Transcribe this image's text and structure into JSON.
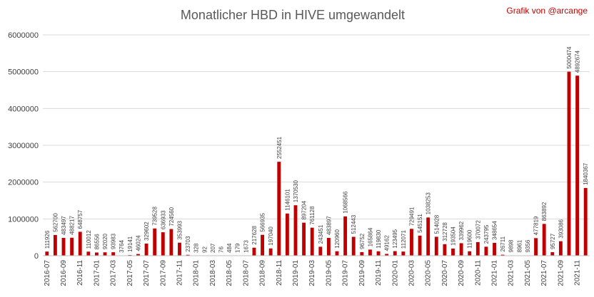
{
  "chart_data": {
    "type": "bar",
    "title": "Monatlicher HBD in HIVE umgewandelt",
    "credit": "Grafik von @arcange",
    "xlabel": "",
    "ylabel": "",
    "ylim": [
      0,
      6000000
    ],
    "yticks": [
      "0",
      "1000000",
      "2000000",
      "3000000",
      "4000000",
      "5000000",
      "6000000"
    ],
    "grid": true,
    "legend": "none",
    "bar_color": "#c00000",
    "categories": [
      "2016-07",
      "2016-08",
      "2016-09",
      "2016-10",
      "2016-11",
      "2016-12",
      "2017-01",
      "2017-02",
      "2017-03",
      "2017-04",
      "2017-05",
      "2017-06",
      "2017-07",
      "2017-08",
      "2017-09",
      "2017-10",
      "2017-11",
      "2017-12",
      "2018-01",
      "2018-02",
      "2018-03",
      "2018-04",
      "2018-05",
      "2018-06",
      "2018-07",
      "2018-08",
      "2018-09",
      "2018-10",
      "2018-11",
      "2018-12",
      "2019-01",
      "2019-02",
      "2019-03",
      "2019-04",
      "2019-05",
      "2019-06",
      "2019-07",
      "2019-08",
      "2019-09",
      "2019-10",
      "2019-11",
      "2019-12",
      "2020-01",
      "2020-02",
      "2020-03",
      "2020-04",
      "2020-05",
      "2020-06",
      "2020-07",
      "2020-08",
      "2020-09",
      "2020-10",
      "2020-11",
      "2020-12",
      "2021-01",
      "2021-02",
      "2021-03",
      "2021-04",
      "2021-05",
      "2021-06",
      "2021-07",
      "2021-08",
      "2021-09",
      "2021-10",
      "2021-11",
      "2021-12"
    ],
    "values": [
      111926,
      562700,
      483497,
      488217,
      648757,
      110012,
      86556,
      92020,
      93983,
      3764,
      19141,
      46024,
      329602,
      739528,
      636933,
      724560,
      353993,
      23703,
      328,
      92,
      207,
      76,
      484,
      179,
      1673,
      217628,
      566935,
      197040,
      2552451,
      1146101,
      1370530,
      897204,
      761128,
      243451,
      483897,
      120960,
      1068566,
      512443,
      96752,
      165864,
      119830,
      49162,
      123495,
      112071,
      729491,
      545151,
      1038253,
      514028,
      312728,
      193504,
      339962,
      119600,
      370072,
      243795,
      348654,
      26711,
      9898,
      8961,
      9356,
      477819,
      863892,
      95727,
      393086,
      5000474,
      4892674,
      1840367
    ],
    "labels": [
      "111926",
      "562700",
      "483497",
      "488217",
      "648757",
      "110012",
      "86556",
      "92020",
      "93983",
      "3764",
      "19141",
      "46024",
      "329602",
      "739528",
      "636933",
      "724560",
      "353993",
      "23703",
      "328",
      "92",
      "207",
      "76",
      "484",
      "179",
      "1673",
      "217628",
      "566935",
      "197040",
      "2552451",
      "1146101",
      "1370530",
      "897204",
      "761128",
      "243451",
      "483897",
      "120960",
      "1068566",
      "512443",
      "96752",
      "165864",
      "119830",
      "49162",
      "123495",
      "112071",
      "729491",
      "545151",
      "1038253",
      "514028",
      "312728",
      "193504",
      "339962",
      "119600",
      "370072",
      "243795",
      "348654",
      "26711",
      "9898",
      "8961",
      "9356",
      "477819",
      "863892",
      "95727",
      "393086",
      "5000474",
      "4892674",
      "1840367"
    ],
    "xtick_labels": [
      "2016-07",
      "2016-09",
      "2016-11",
      "2017-01",
      "2017-03",
      "2017-05",
      "2017-07",
      "2017-09",
      "2017-11",
      "2018-01",
      "2018-03",
      "2018-05",
      "2018-07",
      "2018-09",
      "2018-11",
      "2019-01",
      "2019-03",
      "2019-05",
      "2019-07",
      "2019-09",
      "2019-11",
      "2020-01",
      "2020-03",
      "2020-05",
      "2020-07",
      "2020-09",
      "2020-11",
      "2021-01",
      "2021-03",
      "2021-05",
      "2021-07",
      "2021-09",
      "2021-11"
    ]
  }
}
